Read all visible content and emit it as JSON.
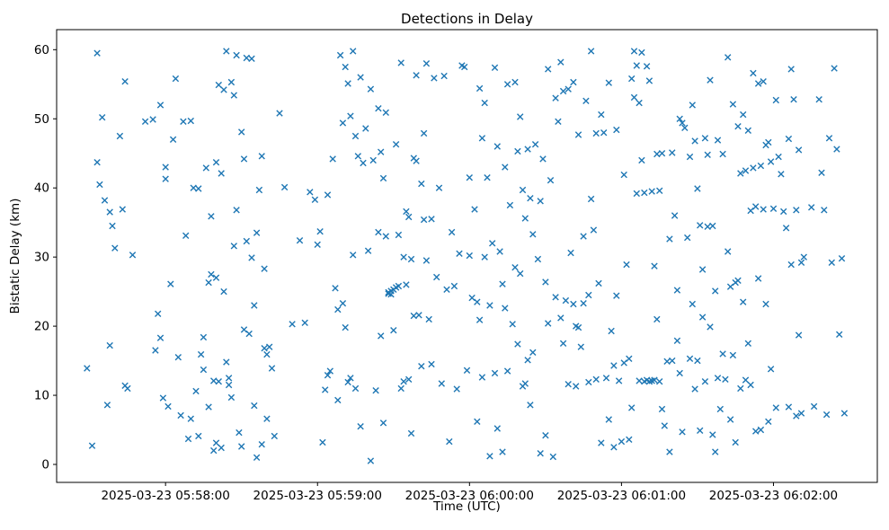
{
  "chart_data": {
    "type": "scatter",
    "title": "Detections in Delay",
    "xlabel": "Time (UTC)",
    "ylabel": "Bistatic Delay (km)",
    "marker": "x",
    "marker_color": "#1f77b4",
    "grid": false,
    "legend": "none",
    "x_axis": {
      "t_unit": "seconds after 2025-03-23 05:57:00 UTC",
      "domain_s": [
        17,
        341
      ],
      "tick_s": [
        60,
        120,
        180,
        240,
        300
      ],
      "tick_labels": [
        "2025-03-23 05:58:00",
        "2025-03-23 05:59:00",
        "2025-03-23 06:00:00",
        "2025-03-23 06:01:00",
        "2025-03-23 06:02:00"
      ]
    },
    "y_axis": {
      "min": -2.6,
      "max": 62.9,
      "ticks": [
        0,
        10,
        20,
        30,
        40,
        50,
        60
      ],
      "tick_labels": [
        "0",
        "10",
        "20",
        "30",
        "40",
        "50",
        "60"
      ]
    },
    "points": [
      [
        29,
        13.9
      ],
      [
        31,
        2.7
      ],
      [
        33,
        59.5
      ],
      [
        33,
        43.7
      ],
      [
        34,
        40.5
      ],
      [
        35,
        50.2
      ],
      [
        36,
        38.2
      ],
      [
        37,
        8.6
      ],
      [
        38,
        36.5
      ],
      [
        38,
        17.2
      ],
      [
        39,
        34.5
      ],
      [
        40,
        31.3
      ],
      [
        42,
        47.5
      ],
      [
        43,
        36.9
      ],
      [
        44,
        55.4
      ],
      [
        44,
        11.4
      ],
      [
        45,
        11.0
      ],
      [
        47,
        30.3
      ],
      [
        52,
        49.6
      ],
      [
        55,
        49.9
      ],
      [
        56,
        16.5
      ],
      [
        57,
        21.8
      ],
      [
        58,
        52.0
      ],
      [
        58,
        18.3
      ],
      [
        59,
        9.6
      ],
      [
        60,
        41.3
      ],
      [
        60,
        43.0
      ],
      [
        61,
        8.4
      ],
      [
        62,
        26.1
      ],
      [
        63,
        47.0
      ],
      [
        64,
        55.8
      ],
      [
        65,
        15.5
      ],
      [
        66,
        7.1
      ],
      [
        67,
        49.6
      ],
      [
        68,
        33.1
      ],
      [
        69,
        3.7
      ],
      [
        70,
        49.7
      ],
      [
        70,
        6.6
      ],
      [
        71,
        40.0
      ],
      [
        72,
        10.6
      ],
      [
        73,
        4.1
      ],
      [
        73,
        39.9
      ],
      [
        74,
        15.9
      ],
      [
        75,
        18.4
      ],
      [
        75,
        13.7
      ],
      [
        76,
        42.9
      ],
      [
        77,
        26.3
      ],
      [
        77,
        8.3
      ],
      [
        78,
        35.9
      ],
      [
        78,
        27.5
      ],
      [
        79,
        2.0
      ],
      [
        79,
        12.1
      ],
      [
        80,
        43.7
      ],
      [
        80,
        27.0
      ],
      [
        80,
        3.1
      ],
      [
        81,
        54.9
      ],
      [
        81,
        12.0
      ],
      [
        82,
        42.1
      ],
      [
        82,
        2.4
      ],
      [
        83,
        54.2
      ],
      [
        83,
        25.0
      ],
      [
        84,
        59.8
      ],
      [
        84,
        14.8
      ],
      [
        85,
        12.5
      ],
      [
        85,
        11.5
      ],
      [
        86,
        55.3
      ],
      [
        86,
        9.7
      ],
      [
        87,
        53.4
      ],
      [
        87,
        31.6
      ],
      [
        88,
        59.2
      ],
      [
        88,
        36.8
      ],
      [
        89,
        4.6
      ],
      [
        90,
        48.1
      ],
      [
        90,
        2.6
      ],
      [
        91,
        44.2
      ],
      [
        91,
        19.5
      ],
      [
        92,
        58.8
      ],
      [
        92,
        32.3
      ],
      [
        93,
        18.9
      ],
      [
        94,
        58.7
      ],
      [
        94,
        29.9
      ],
      [
        95,
        8.5
      ],
      [
        95,
        23.0
      ],
      [
        96,
        33.5
      ],
      [
        96,
        1.0
      ],
      [
        97,
        39.7
      ],
      [
        98,
        44.6
      ],
      [
        98,
        2.9
      ],
      [
        99,
        16.8
      ],
      [
        99,
        28.3
      ],
      [
        100,
        6.6
      ],
      [
        100,
        15.9
      ],
      [
        101,
        17.0
      ],
      [
        102,
        13.9
      ],
      [
        103,
        4.1
      ],
      [
        105,
        50.8
      ],
      [
        107,
        40.1
      ],
      [
        110,
        20.3
      ],
      [
        113,
        32.4
      ],
      [
        115,
        20.5
      ],
      [
        117,
        39.4
      ],
      [
        119,
        38.3
      ],
      [
        120,
        31.8
      ],
      [
        121,
        33.7
      ],
      [
        122,
        3.2
      ],
      [
        123,
        10.8
      ],
      [
        124,
        39.0
      ],
      [
        124,
        12.9
      ],
      [
        125,
        13.5
      ],
      [
        126,
        44.2
      ],
      [
        127,
        25.5
      ],
      [
        128,
        22.4
      ],
      [
        128,
        9.3
      ],
      [
        129,
        59.2
      ],
      [
        130,
        49.4
      ],
      [
        130,
        23.3
      ],
      [
        131,
        57.5
      ],
      [
        131,
        19.8
      ],
      [
        132,
        55.1
      ],
      [
        132,
        11.9
      ],
      [
        133,
        50.4
      ],
      [
        133,
        12.5
      ],
      [
        134,
        59.8
      ],
      [
        134,
        30.3
      ],
      [
        135,
        47.5
      ],
      [
        135,
        11.0
      ],
      [
        136,
        44.6
      ],
      [
        137,
        56.0
      ],
      [
        137,
        5.5
      ],
      [
        138,
        43.6
      ],
      [
        139,
        48.6
      ],
      [
        140,
        30.9
      ],
      [
        141,
        54.3
      ],
      [
        141,
        0.5
      ],
      [
        142,
        44.0
      ],
      [
        143,
        10.7
      ],
      [
        144,
        51.5
      ],
      [
        144,
        33.6
      ],
      [
        145,
        45.2
      ],
      [
        145,
        18.6
      ],
      [
        146,
        41.4
      ],
      [
        146,
        6.0
      ],
      [
        147,
        50.9
      ],
      [
        147,
        33.0
      ],
      [
        148,
        24.7
      ],
      [
        148,
        24.9
      ],
      [
        149,
        25.1
      ],
      [
        149,
        24.6
      ],
      [
        150,
        25.3
      ],
      [
        150,
        19.4
      ],
      [
        151,
        25.6
      ],
      [
        151,
        46.3
      ],
      [
        152,
        25.8
      ],
      [
        152,
        33.2
      ],
      [
        153,
        11.0
      ],
      [
        153,
        58.1
      ],
      [
        154,
        30.0
      ],
      [
        154,
        12.0
      ],
      [
        155,
        36.6
      ],
      [
        155,
        26.0
      ],
      [
        156,
        35.8
      ],
      [
        156,
        12.3
      ],
      [
        157,
        29.7
      ],
      [
        157,
        4.5
      ],
      [
        158,
        44.3
      ],
      [
        158,
        21.5
      ],
      [
        159,
        56.3
      ],
      [
        159,
        43.9
      ],
      [
        160,
        21.6
      ],
      [
        161,
        40.6
      ],
      [
        161,
        14.2
      ],
      [
        162,
        47.9
      ],
      [
        162,
        35.4
      ],
      [
        163,
        58.0
      ],
      [
        163,
        29.5
      ],
      [
        164,
        21.0
      ],
      [
        165,
        35.5
      ],
      [
        165,
        14.5
      ],
      [
        166,
        55.9
      ],
      [
        167,
        27.1
      ],
      [
        168,
        40.0
      ],
      [
        169,
        11.7
      ],
      [
        170,
        56.2
      ],
      [
        171,
        25.3
      ],
      [
        172,
        3.3
      ],
      [
        173,
        33.6
      ],
      [
        174,
        25.8
      ],
      [
        175,
        10.9
      ],
      [
        176,
        30.5
      ],
      [
        177,
        57.7
      ],
      [
        178,
        57.5
      ],
      [
        179,
        13.6
      ],
      [
        180,
        41.5
      ],
      [
        180,
        30.2
      ],
      [
        181,
        24.1
      ],
      [
        182,
        36.9
      ],
      [
        183,
        23.5
      ],
      [
        183,
        6.2
      ],
      [
        184,
        54.4
      ],
      [
        184,
        20.9
      ],
      [
        185,
        47.2
      ],
      [
        185,
        12.6
      ],
      [
        186,
        52.3
      ],
      [
        186,
        30.0
      ],
      [
        187,
        41.5
      ],
      [
        188,
        23.0
      ],
      [
        188,
        1.2
      ],
      [
        189,
        32.0
      ],
      [
        190,
        57.4
      ],
      [
        190,
        13.2
      ],
      [
        191,
        46.0
      ],
      [
        191,
        5.2
      ],
      [
        192,
        30.8
      ],
      [
        193,
        26.1
      ],
      [
        193,
        1.8
      ],
      [
        194,
        43.0
      ],
      [
        194,
        22.6
      ],
      [
        195,
        55.0
      ],
      [
        195,
        13.5
      ],
      [
        196,
        37.5
      ],
      [
        197,
        20.3
      ],
      [
        198,
        55.3
      ],
      [
        198,
        28.5
      ],
      [
        199,
        45.3
      ],
      [
        199,
        17.4
      ],
      [
        200,
        50.3
      ],
      [
        200,
        27.6
      ],
      [
        201,
        39.7
      ],
      [
        201,
        11.3
      ],
      [
        202,
        35.6
      ],
      [
        202,
        11.7
      ],
      [
        203,
        45.6
      ],
      [
        203,
        15.1
      ],
      [
        204,
        38.5
      ],
      [
        204,
        8.6
      ],
      [
        205,
        33.3
      ],
      [
        205,
        16.2
      ],
      [
        206,
        46.3
      ],
      [
        207,
        29.7
      ],
      [
        208,
        38.1
      ],
      [
        208,
        1.6
      ],
      [
        209,
        44.2
      ],
      [
        210,
        26.4
      ],
      [
        210,
        4.2
      ],
      [
        211,
        57.2
      ],
      [
        211,
        20.4
      ],
      [
        212,
        41.1
      ],
      [
        213,
        1.1
      ],
      [
        214,
        53.0
      ],
      [
        214,
        24.2
      ],
      [
        215,
        49.6
      ],
      [
        216,
        58.2
      ],
      [
        216,
        21.2
      ],
      [
        217,
        54.0
      ],
      [
        217,
        17.5
      ],
      [
        218,
        23.7
      ],
      [
        219,
        54.3
      ],
      [
        219,
        11.6
      ],
      [
        220,
        30.6
      ],
      [
        221,
        55.3
      ],
      [
        221,
        23.2
      ],
      [
        222,
        20.0
      ],
      [
        222,
        11.3
      ],
      [
        223,
        47.7
      ],
      [
        223,
        19.8
      ],
      [
        224,
        17.0
      ],
      [
        225,
        33.0
      ],
      [
        225,
        23.3
      ],
      [
        226,
        52.6
      ],
      [
        227,
        11.9
      ],
      [
        227,
        24.5
      ],
      [
        228,
        59.8
      ],
      [
        228,
        38.4
      ],
      [
        229,
        33.9
      ],
      [
        230,
        47.9
      ],
      [
        230,
        12.3
      ],
      [
        231,
        26.2
      ],
      [
        232,
        3.1
      ],
      [
        232,
        50.6
      ],
      [
        233,
        48.0
      ],
      [
        234,
        12.5
      ],
      [
        235,
        55.2
      ],
      [
        235,
        6.5
      ],
      [
        236,
        19.3
      ],
      [
        237,
        14.3
      ],
      [
        237,
        2.5
      ],
      [
        238,
        48.4
      ],
      [
        238,
        24.4
      ],
      [
        239,
        12.1
      ],
      [
        240,
        3.3
      ],
      [
        241,
        41.9
      ],
      [
        241,
        14.7
      ],
      [
        242,
        28.9
      ],
      [
        243,
        15.3
      ],
      [
        243,
        3.6
      ],
      [
        244,
        55.8
      ],
      [
        244,
        8.2
      ],
      [
        245,
        59.8
      ],
      [
        245,
        53.1
      ],
      [
        246,
        57.7
      ],
      [
        246,
        39.2
      ],
      [
        247,
        52.3
      ],
      [
        247,
        12.1
      ],
      [
        248,
        59.6
      ],
      [
        248,
        44.0
      ],
      [
        249,
        39.3
      ],
      [
        249,
        12.0
      ],
      [
        250,
        57.6
      ],
      [
        250,
        12.2
      ],
      [
        251,
        55.5
      ],
      [
        251,
        12.0
      ],
      [
        252,
        39.5
      ],
      [
        252,
        12.1
      ],
      [
        253,
        28.7
      ],
      [
        253,
        12.2
      ],
      [
        254,
        44.9
      ],
      [
        254,
        21.0
      ],
      [
        255,
        39.6
      ],
      [
        255,
        12.0
      ],
      [
        256,
        45.0
      ],
      [
        256,
        8.0
      ],
      [
        257,
        5.6
      ],
      [
        258,
        14.9
      ],
      [
        259,
        32.6
      ],
      [
        259,
        1.8
      ],
      [
        260,
        45.1
      ],
      [
        260,
        15.0
      ],
      [
        261,
        36.0
      ],
      [
        262,
        25.2
      ],
      [
        262,
        17.9
      ],
      [
        263,
        50.0
      ],
      [
        263,
        13.2
      ],
      [
        264,
        49.4
      ],
      [
        264,
        4.7
      ],
      [
        265,
        48.7
      ],
      [
        266,
        32.8
      ],
      [
        267,
        44.5
      ],
      [
        267,
        15.3
      ],
      [
        268,
        52.0
      ],
      [
        268,
        23.2
      ],
      [
        269,
        46.8
      ],
      [
        269,
        10.9
      ],
      [
        270,
        39.9
      ],
      [
        270,
        15.0
      ],
      [
        271,
        34.6
      ],
      [
        271,
        4.9
      ],
      [
        272,
        28.2
      ],
      [
        272,
        21.3
      ],
      [
        273,
        47.2
      ],
      [
        273,
        12.0
      ],
      [
        274,
        44.8
      ],
      [
        274,
        34.4
      ],
      [
        275,
        55.6
      ],
      [
        275,
        19.9
      ],
      [
        276,
        34.5
      ],
      [
        276,
        4.3
      ],
      [
        277,
        25.1
      ],
      [
        277,
        1.8
      ],
      [
        278,
        46.9
      ],
      [
        278,
        12.5
      ],
      [
        279,
        8.0
      ],
      [
        280,
        44.9
      ],
      [
        280,
        16.0
      ],
      [
        281,
        12.3
      ],
      [
        282,
        58.9
      ],
      [
        282,
        30.8
      ],
      [
        283,
        25.7
      ],
      [
        283,
        6.5
      ],
      [
        284,
        52.1
      ],
      [
        284,
        15.8
      ],
      [
        285,
        26.3
      ],
      [
        285,
        3.2
      ],
      [
        286,
        48.9
      ],
      [
        286,
        26.6
      ],
      [
        287,
        42.1
      ],
      [
        287,
        11.0
      ],
      [
        288,
        50.6
      ],
      [
        288,
        23.5
      ],
      [
        289,
        42.5
      ],
      [
        289,
        12.2
      ],
      [
        290,
        48.3
      ],
      [
        290,
        17.5
      ],
      [
        291,
        36.7
      ],
      [
        291,
        11.5
      ],
      [
        292,
        56.6
      ],
      [
        292,
        42.9
      ],
      [
        293,
        37.3
      ],
      [
        293,
        4.8
      ],
      [
        294,
        55.1
      ],
      [
        294,
        26.9
      ],
      [
        295,
        43.2
      ],
      [
        295,
        5.0
      ],
      [
        296,
        55.4
      ],
      [
        296,
        36.9
      ],
      [
        297,
        46.2
      ],
      [
        297,
        23.2
      ],
      [
        298,
        46.6
      ],
      [
        298,
        6.2
      ],
      [
        299,
        43.8
      ],
      [
        299,
        13.8
      ],
      [
        300,
        37.0
      ],
      [
        301,
        52.7
      ],
      [
        301,
        8.2
      ],
      [
        302,
        44.5
      ],
      [
        303,
        42.0
      ],
      [
        304,
        36.6
      ],
      [
        305,
        34.2
      ],
      [
        306,
        47.1
      ],
      [
        306,
        8.3
      ],
      [
        307,
        57.2
      ],
      [
        307,
        28.9
      ],
      [
        308,
        52.8
      ],
      [
        309,
        36.8
      ],
      [
        309,
        7.0
      ],
      [
        310,
        45.5
      ],
      [
        310,
        18.7
      ],
      [
        311,
        29.2
      ],
      [
        311,
        7.4
      ],
      [
        312,
        30.0
      ],
      [
        315,
        37.2
      ],
      [
        316,
        8.4
      ],
      [
        318,
        52.8
      ],
      [
        319,
        42.2
      ],
      [
        320,
        36.8
      ],
      [
        321,
        7.2
      ],
      [
        322,
        47.2
      ],
      [
        323,
        29.2
      ],
      [
        324,
        57.3
      ],
      [
        325,
        45.6
      ],
      [
        326,
        18.8
      ],
      [
        327,
        29.8
      ],
      [
        328,
        7.4
      ]
    ]
  }
}
